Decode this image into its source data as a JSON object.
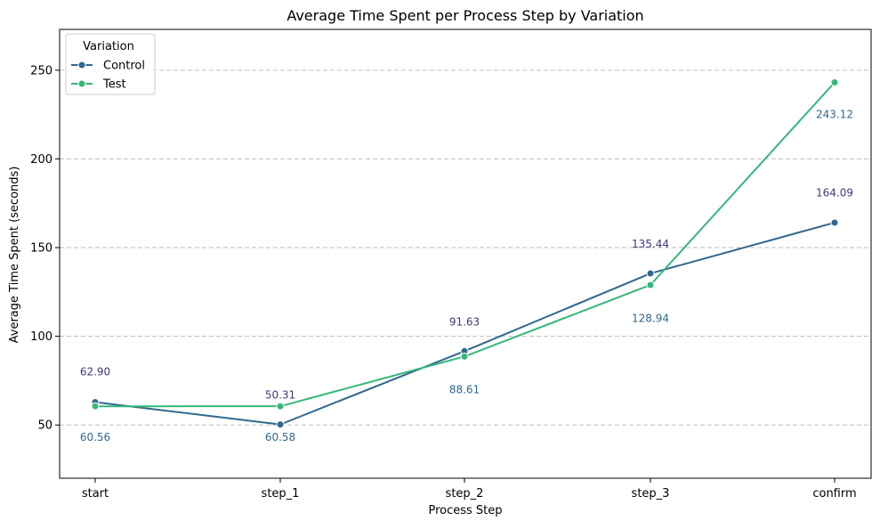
{
  "chart_data": {
    "type": "line",
    "title": "Average Time Spent per Process Step by Variation",
    "xlabel": "Process Step",
    "ylabel": "Average Time Spent (seconds)",
    "categories": [
      "start",
      "step_1",
      "step_2",
      "step_3",
      "confirm"
    ],
    "ylim": [
      20,
      273
    ],
    "yticks": [
      50,
      100,
      150,
      200,
      250
    ],
    "grid": "horizontal dashed",
    "legend": {
      "title": "Variation",
      "placement": "top-left"
    },
    "series": [
      {
        "name": "Control",
        "color": "#31688e",
        "values": [
          62.9,
          50.31,
          91.63,
          135.44,
          164.09
        ],
        "labels": [
          "62.90",
          "50.31",
          "91.63",
          "135.44",
          "164.09"
        ]
      },
      {
        "name": "Test",
        "color": "#35b779",
        "values": [
          60.56,
          60.58,
          88.61,
          128.94,
          243.12
        ],
        "labels": [
          "60.56",
          "60.58",
          "88.61",
          "128.94",
          "243.12"
        ]
      }
    ],
    "annotations": [
      {
        "text": "62.90",
        "x": "start",
        "y": 80,
        "color": "#3b3b7a"
      },
      {
        "text": "60.56",
        "x": "start",
        "y": 43,
        "color": "#31688e"
      },
      {
        "text": "50.31",
        "x": "step_1",
        "y": 67,
        "color": "#3b3b7a"
      },
      {
        "text": "60.58",
        "x": "step_1",
        "y": 43,
        "color": "#31688e"
      },
      {
        "text": "91.63",
        "x": "step_2",
        "y": 108,
        "color": "#3b3b7a"
      },
      {
        "text": "88.61",
        "x": "step_2",
        "y": 70,
        "color": "#31688e"
      },
      {
        "text": "135.44",
        "x": "step_3",
        "y": 152,
        "color": "#3b3b7a"
      },
      {
        "text": "128.94",
        "x": "step_3",
        "y": 110,
        "color": "#31688e"
      },
      {
        "text": "164.09",
        "x": "confirm",
        "y": 181,
        "color": "#3b3b7a"
      },
      {
        "text": "243.12",
        "x": "confirm",
        "y": 225,
        "color": "#31688e"
      }
    ]
  }
}
